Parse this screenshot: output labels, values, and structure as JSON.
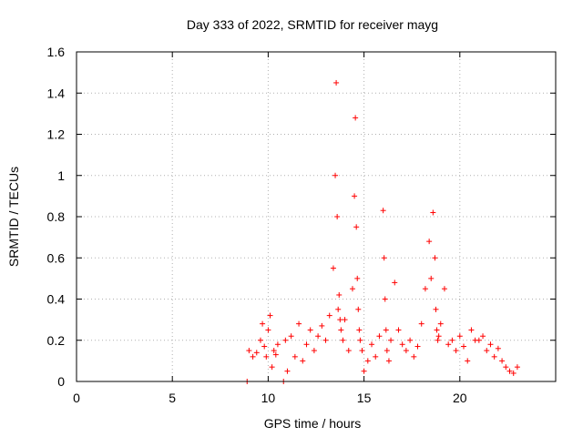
{
  "chart_data": {
    "type": "scatter",
    "title": "Day 333 of 2022, SRMTID for receiver mayg",
    "xlabel": "GPS time / hours",
    "ylabel": "SRMTID / TECUs",
    "xlim": [
      0,
      25
    ],
    "ylim": [
      0,
      1.6
    ],
    "x_ticks": [
      0,
      5,
      10,
      15,
      20
    ],
    "x_tick_labels": [
      "0",
      "5",
      "10",
      "15",
      "20"
    ],
    "y_ticks": [
      0,
      0.2,
      0.4,
      0.6,
      0.8,
      1.0,
      1.2,
      1.4,
      1.6
    ],
    "y_tick_labels": [
      "0",
      "0.2",
      "0.4",
      "0.6",
      "0.8",
      "1",
      "1.2",
      "1.4",
      "1.6"
    ],
    "grid": true,
    "marker": "+",
    "series": [
      {
        "name": "SRMTID",
        "color": "#ff0000",
        "x": [
          8.9,
          9.0,
          9.2,
          9.4,
          9.6,
          9.7,
          9.8,
          9.9,
          10.0,
          10.1,
          10.2,
          10.3,
          10.4,
          10.5,
          10.8,
          10.9,
          11.0,
          11.2,
          11.4,
          11.6,
          11.8,
          12.0,
          12.2,
          12.4,
          12.6,
          12.8,
          13.0,
          13.2,
          13.4,
          13.5,
          13.55,
          13.6,
          13.65,
          13.7,
          13.75,
          13.8,
          13.9,
          14.0,
          14.2,
          14.4,
          14.5,
          14.55,
          14.6,
          14.65,
          14.7,
          14.75,
          14.8,
          14.9,
          15.0,
          15.2,
          15.4,
          15.6,
          15.8,
          16.0,
          16.05,
          16.1,
          16.15,
          16.2,
          16.3,
          16.4,
          16.6,
          16.8,
          17.0,
          17.2,
          17.4,
          17.6,
          17.8,
          18.0,
          18.2,
          18.4,
          18.5,
          18.6,
          18.7,
          18.75,
          18.8,
          18.85,
          18.9,
          19.0,
          19.2,
          19.4,
          19.6,
          19.8,
          20.0,
          20.2,
          20.4,
          20.6,
          20.8,
          21.0,
          21.2,
          21.4,
          21.6,
          21.8,
          22.0,
          22.2,
          22.4,
          22.6,
          22.8,
          23.0
        ],
        "y": [
          0.0,
          0.15,
          0.12,
          0.14,
          0.2,
          0.28,
          0.17,
          0.12,
          0.25,
          0.32,
          0.07,
          0.15,
          0.13,
          0.18,
          0.0,
          0.2,
          0.05,
          0.22,
          0.12,
          0.28,
          0.1,
          0.18,
          0.25,
          0.15,
          0.22,
          0.27,
          0.2,
          0.32,
          0.55,
          1.0,
          1.45,
          0.8,
          0.35,
          0.42,
          0.3,
          0.25,
          0.2,
          0.3,
          0.15,
          0.45,
          0.9,
          1.28,
          0.75,
          0.5,
          0.35,
          0.25,
          0.2,
          0.15,
          0.05,
          0.1,
          0.18,
          0.12,
          0.22,
          0.83,
          0.6,
          0.4,
          0.25,
          0.15,
          0.1,
          0.2,
          0.48,
          0.25,
          0.18,
          0.15,
          0.2,
          0.12,
          0.17,
          0.28,
          0.45,
          0.68,
          0.5,
          0.82,
          0.6,
          0.35,
          0.25,
          0.2,
          0.22,
          0.28,
          0.45,
          0.18,
          0.2,
          0.15,
          0.22,
          0.17,
          0.1,
          0.25,
          0.2,
          0.2,
          0.22,
          0.15,
          0.18,
          0.12,
          0.16,
          0.1,
          0.07,
          0.05,
          0.04,
          0.07
        ]
      }
    ]
  }
}
